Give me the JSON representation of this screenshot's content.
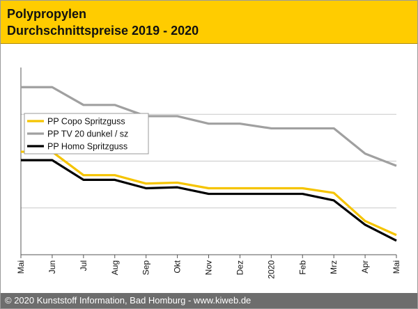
{
  "header": {
    "title_line1": "Polypropylen",
    "title_line2": "Durchschnittspreise 2019 - 2020"
  },
  "footer": {
    "copyright": "© 2020 Kunststoff Information, Bad Homburg - www.kiweb.de"
  },
  "colors": {
    "header_bg": "#ffcc00",
    "footer_bg": "#6d6d6d",
    "series_copo": "#f5c400",
    "series_tv20": "#a0a0a0",
    "series_homo": "#000000"
  },
  "chart_data": {
    "type": "line",
    "title": "",
    "xlabel": "",
    "ylabel": "",
    "ylim": [
      0,
      100
    ],
    "grid": "horizontal",
    "legend_position": "upper-left",
    "categories": [
      "Mai",
      "Jun",
      "Jul",
      "Aug",
      "Sep",
      "Okt",
      "Nov",
      "Dez",
      "2020",
      "Feb",
      "Mrz",
      "Apr",
      "Mai"
    ],
    "series": [
      {
        "name": "PP Copo Spritzguss",
        "color": "#f5c400",
        "values": [
          55,
          55,
          42.5,
          42.5,
          38,
          38.5,
          35.5,
          35.5,
          35.5,
          35.5,
          33,
          18,
          10.5
        ]
      },
      {
        "name": "PP TV 20 dunkel / sz",
        "color": "#a0a0a0",
        "values": [
          89.5,
          89.5,
          80,
          80,
          74,
          74,
          70,
          70,
          67.5,
          67.5,
          67.5,
          54,
          47.5
        ]
      },
      {
        "name": "PP Homo Spritzguss",
        "color": "#000000",
        "values": [
          50.5,
          50.5,
          40,
          40,
          35.5,
          36,
          32.5,
          32.5,
          32.5,
          32.5,
          29,
          16,
          7.5
        ]
      }
    ]
  }
}
